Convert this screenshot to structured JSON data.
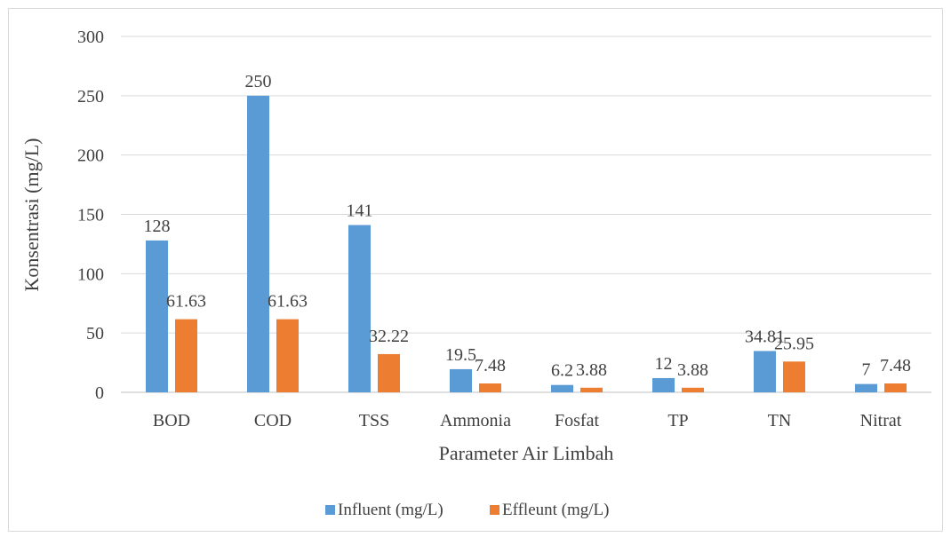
{
  "chart_data": {
    "type": "bar",
    "title": "",
    "xlabel": "Parameter Air Limbah",
    "ylabel": "Konsentrasi (mg/L)",
    "ylim": [
      0,
      300
    ],
    "yticks": [
      0,
      50,
      100,
      150,
      200,
      250,
      300
    ],
    "grid": true,
    "legend_position": "bottom",
    "categories": [
      "BOD",
      "COD",
      "TSS",
      "Ammonia",
      "Fosfat",
      "TP",
      "TN",
      "Nitrat"
    ],
    "series": [
      {
        "name": "Influent (mg/L)",
        "color": "#5b9bd5",
        "values": [
          128,
          250,
          141,
          19.5,
          6.2,
          12,
          34.81,
          7
        ],
        "labels": [
          "128",
          "250",
          "141",
          "19.5",
          "6.2",
          "12",
          "34.81",
          "7"
        ]
      },
      {
        "name": "Effleunt (mg/L)",
        "color": "#ed7d31",
        "values": [
          61.63,
          61.63,
          32.22,
          7.48,
          3.88,
          3.88,
          25.95,
          7.48
        ],
        "labels": [
          "61.63",
          "61.63",
          "32.22",
          "7.48",
          "3.88",
          "3.88",
          "25.95",
          "7.48"
        ]
      }
    ]
  }
}
